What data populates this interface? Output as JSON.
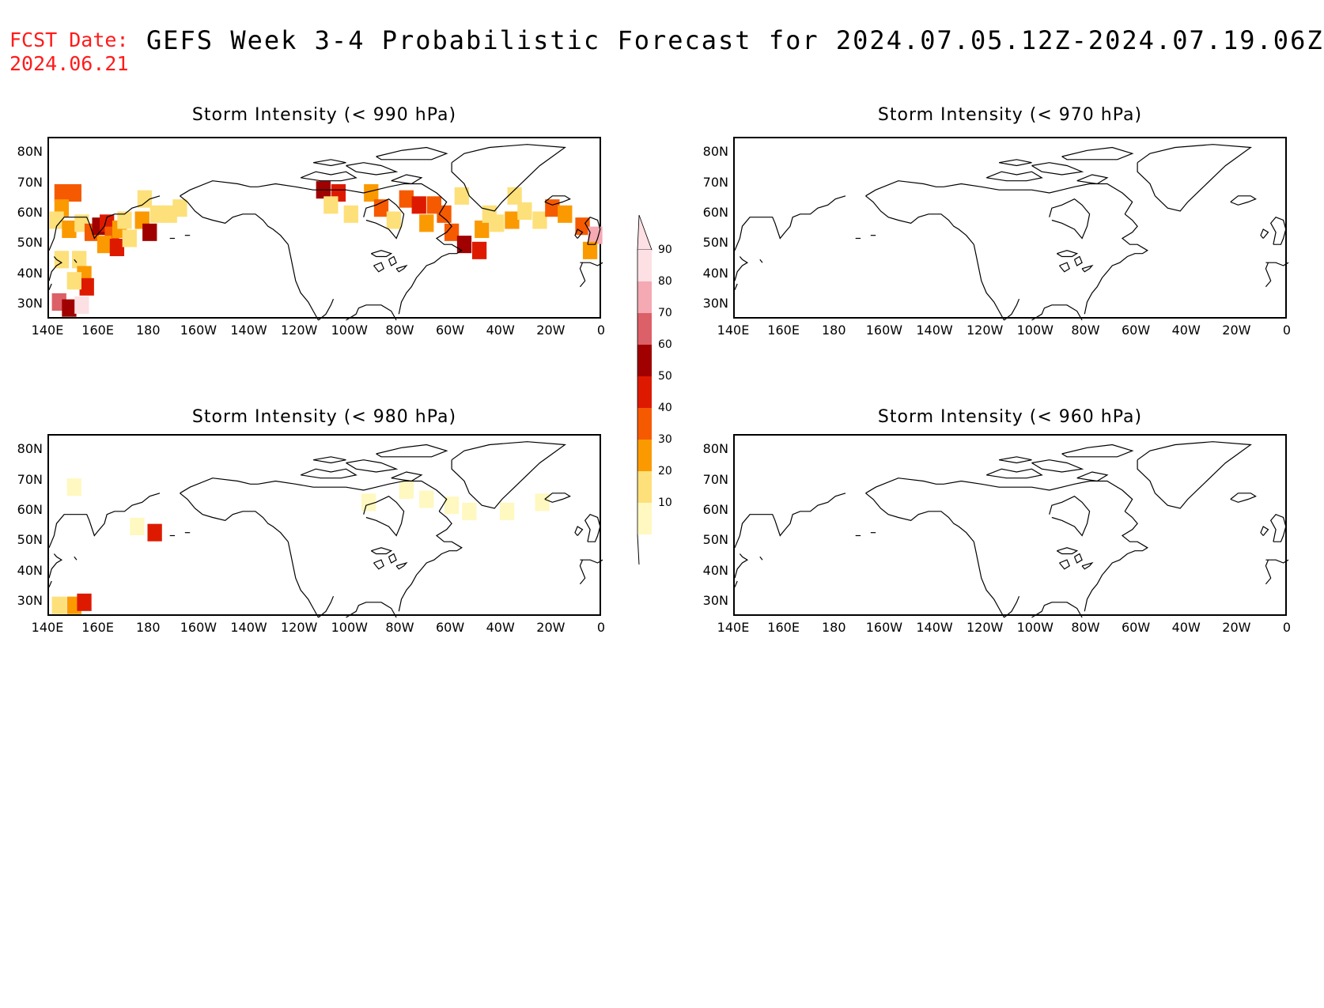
{
  "header": {
    "fcst_label": "FCST Date:",
    "fcst_date": "2024.06.21",
    "title": "GEFS Week 3-4 Probabilistic Forecast for 2024.07.05.12Z-2024.07.19.06Z"
  },
  "axes": {
    "lat_ticks": [
      "80N",
      "70N",
      "60N",
      "50N",
      "40N",
      "30N"
    ],
    "lon_ticks": [
      "140E",
      "160E",
      "180",
      "160W",
      "140W",
      "120W",
      "100W",
      "80W",
      "60W",
      "40W",
      "20W",
      "0"
    ]
  },
  "panels": [
    {
      "id": "p990",
      "title": "Storm Intensity (< 990 hPa)"
    },
    {
      "id": "p970",
      "title": "Storm Intensity (< 970 hPa)"
    },
    {
      "id": "p980",
      "title": "Storm Intensity (< 980 hPa)"
    },
    {
      "id": "p960",
      "title": "Storm Intensity (< 960 hPa)"
    }
  ],
  "colorbar": {
    "labels": [
      "90",
      "80",
      "70",
      "60",
      "50",
      "40",
      "30",
      "20",
      "10"
    ],
    "colors": [
      "#fce0e4",
      "#f4a9b3",
      "#dc6068",
      "#a00000",
      "#dd1a00",
      "#f55a00",
      "#fb9a00",
      "#fde07a",
      "#fff8c0"
    ]
  },
  "chart_data": {
    "type": "heatmap",
    "units": "probability (%)",
    "lon_range": [
      140,
      360
    ],
    "lat_range": [
      25,
      85
    ],
    "panels": {
      "p990": [
        {
          "lon": 145,
          "lat": 67,
          "v": 40
        },
        {
          "lon": 150,
          "lat": 67,
          "v": 40
        },
        {
          "lon": 145,
          "lat": 62,
          "v": 30
        },
        {
          "lon": 143,
          "lat": 58,
          "v": 20
        },
        {
          "lon": 148,
          "lat": 55,
          "v": 30
        },
        {
          "lon": 153,
          "lat": 57,
          "v": 20
        },
        {
          "lon": 157,
          "lat": 54,
          "v": 40
        },
        {
          "lon": 160,
          "lat": 56,
          "v": 60
        },
        {
          "lon": 163,
          "lat": 57,
          "v": 50
        },
        {
          "lon": 165,
          "lat": 53,
          "v": 40
        },
        {
          "lon": 168,
          "lat": 55,
          "v": 30
        },
        {
          "lon": 170,
          "lat": 58,
          "v": 20
        },
        {
          "lon": 162,
          "lat": 50,
          "v": 30
        },
        {
          "lon": 167,
          "lat": 49,
          "v": 50
        },
        {
          "lon": 172,
          "lat": 52,
          "v": 20
        },
        {
          "lon": 177,
          "lat": 58,
          "v": 30
        },
        {
          "lon": 180,
          "lat": 54,
          "v": 60
        },
        {
          "lon": 183,
          "lat": 60,
          "v": 20
        },
        {
          "lon": 178,
          "lat": 65,
          "v": 20
        },
        {
          "lon": 188,
          "lat": 60,
          "v": 20
        },
        {
          "lon": 192,
          "lat": 62,
          "v": 20
        },
        {
          "lon": 152,
          "lat": 45,
          "v": 20
        },
        {
          "lon": 154,
          "lat": 40,
          "v": 30
        },
        {
          "lon": 155,
          "lat": 36,
          "v": 50
        },
        {
          "lon": 150,
          "lat": 38,
          "v": 20
        },
        {
          "lon": 144,
          "lat": 31,
          "v": 70
        },
        {
          "lon": 148,
          "lat": 29,
          "v": 60
        },
        {
          "lon": 153,
          "lat": 30,
          "v": 90
        },
        {
          "lon": 145,
          "lat": 45,
          "v": 20
        },
        {
          "lon": 249,
          "lat": 68,
          "v": 60
        },
        {
          "lon": 255,
          "lat": 67,
          "v": 50
        },
        {
          "lon": 252,
          "lat": 63,
          "v": 20
        },
        {
          "lon": 260,
          "lat": 60,
          "v": 20
        },
        {
          "lon": 268,
          "lat": 67,
          "v": 30
        },
        {
          "lon": 272,
          "lat": 62,
          "v": 40
        },
        {
          "lon": 277,
          "lat": 58,
          "v": 20
        },
        {
          "lon": 282,
          "lat": 65,
          "v": 40
        },
        {
          "lon": 287,
          "lat": 63,
          "v": 50
        },
        {
          "lon": 293,
          "lat": 63,
          "v": 40
        },
        {
          "lon": 290,
          "lat": 57,
          "v": 30
        },
        {
          "lon": 297,
          "lat": 60,
          "v": 40
        },
        {
          "lon": 300,
          "lat": 54,
          "v": 40
        },
        {
          "lon": 305,
          "lat": 50,
          "v": 60
        },
        {
          "lon": 311,
          "lat": 48,
          "v": 50
        },
        {
          "lon": 312,
          "lat": 55,
          "v": 30
        },
        {
          "lon": 318,
          "lat": 57,
          "v": 20
        },
        {
          "lon": 324,
          "lat": 58,
          "v": 30
        },
        {
          "lon": 329,
          "lat": 61,
          "v": 20
        },
        {
          "lon": 335,
          "lat": 58,
          "v": 20
        },
        {
          "lon": 340,
          "lat": 62,
          "v": 40
        },
        {
          "lon": 345,
          "lat": 60,
          "v": 30
        },
        {
          "lon": 352,
          "lat": 56,
          "v": 40
        },
        {
          "lon": 357,
          "lat": 53,
          "v": 80
        },
        {
          "lon": 355,
          "lat": 48,
          "v": 30
        },
        {
          "lon": 325,
          "lat": 66,
          "v": 20
        },
        {
          "lon": 315,
          "lat": 60,
          "v": 20
        },
        {
          "lon": 304,
          "lat": 66,
          "v": 20
        }
      ],
      "p980": [
        {
          "lon": 150,
          "lat": 68,
          "v": 10
        },
        {
          "lon": 175,
          "lat": 55,
          "v": 10
        },
        {
          "lon": 182,
          "lat": 53,
          "v": 50
        },
        {
          "lon": 144,
          "lat": 29,
          "v": 20
        },
        {
          "lon": 150,
          "lat": 29,
          "v": 30
        },
        {
          "lon": 154,
          "lat": 30,
          "v": 50
        },
        {
          "lon": 267,
          "lat": 63,
          "v": 10
        },
        {
          "lon": 282,
          "lat": 67,
          "v": 10
        },
        {
          "lon": 290,
          "lat": 64,
          "v": 10
        },
        {
          "lon": 300,
          "lat": 62,
          "v": 10
        },
        {
          "lon": 307,
          "lat": 60,
          "v": 10
        },
        {
          "lon": 322,
          "lat": 60,
          "v": 10
        },
        {
          "lon": 336,
          "lat": 63,
          "v": 10
        }
      ],
      "p970": [],
      "p960": []
    }
  }
}
